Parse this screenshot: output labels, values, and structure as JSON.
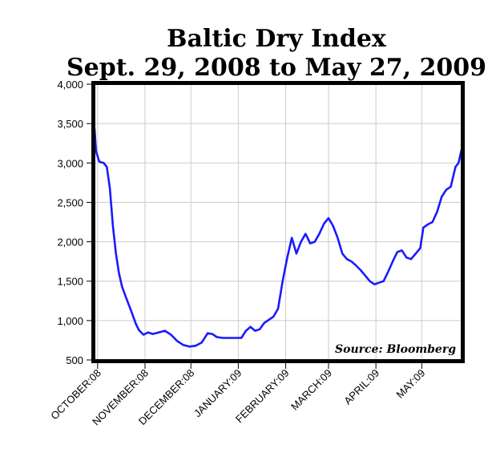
{
  "chart_data": {
    "type": "line",
    "title": "Baltic Dry Index",
    "subtitle": "Sept. 29, 2008 to May 27, 2009",
    "source": "Source: Bloomberg",
    "xlabel": "",
    "ylabel": "",
    "ylim": [
      500,
      4000
    ],
    "xlim": [
      "2008-09-29",
      "2009-05-27"
    ],
    "yticks": [
      500,
      1000,
      1500,
      2000,
      2500,
      3000,
      3500,
      4000
    ],
    "ytick_labels": [
      "500",
      "1,000",
      "1,500",
      "2,000",
      "2,500",
      "3,000",
      "3,500",
      "4,000"
    ],
    "xticks": [
      {
        "label": "OCTOBER:08",
        "date": "2008-10-01"
      },
      {
        "label": "NOVEMBER:08",
        "date": "2008-11-01"
      },
      {
        "label": "DECEMBER:08",
        "date": "2008-12-01"
      },
      {
        "label": "JANUARY:09",
        "date": "2009-01-01"
      },
      {
        "label": "FEBRUARY:09",
        "date": "2009-02-01"
      },
      {
        "label": "MARCH:09",
        "date": "2009-03-01"
      },
      {
        "label": "APRIL:09",
        "date": "2009-04-01"
      },
      {
        "label": "MAY:09",
        "date": "2009-05-01"
      }
    ],
    "grid": true,
    "line_color": "#1a1aff",
    "series": [
      {
        "x": [
          "2008-09-29",
          "2008-09-30",
          "2008-10-02",
          "2008-10-03",
          "2008-10-05",
          "2008-10-07",
          "2008-10-09",
          "2008-10-11",
          "2008-10-13",
          "2008-10-15",
          "2008-10-17",
          "2008-10-20",
          "2008-10-23",
          "2008-10-26",
          "2008-10-28",
          "2008-10-31",
          "2008-11-03",
          "2008-11-06",
          "2008-11-10",
          "2008-11-14",
          "2008-11-18",
          "2008-11-22",
          "2008-11-26",
          "2008-11-30",
          "2008-12-04",
          "2008-12-08",
          "2008-12-12",
          "2008-12-15",
          "2008-12-18",
          "2008-12-22",
          "2008-12-26",
          "2008-12-30",
          "2009-01-03",
          "2009-01-06",
          "2009-01-09",
          "2009-01-12",
          "2009-01-15",
          "2009-01-18",
          "2009-01-21",
          "2009-01-24",
          "2009-01-27",
          "2009-01-30",
          "2009-02-02",
          "2009-02-05",
          "2009-02-08",
          "2009-02-11",
          "2009-02-14",
          "2009-02-17",
          "2009-02-20",
          "2009-02-23",
          "2009-02-26",
          "2009-03-01",
          "2009-03-04",
          "2009-03-07",
          "2009-03-10",
          "2009-03-13",
          "2009-03-16",
          "2009-03-19",
          "2009-03-22",
          "2009-03-25",
          "2009-03-28",
          "2009-03-31",
          "2009-04-03",
          "2009-04-06",
          "2009-04-09",
          "2009-04-12",
          "2009-04-15",
          "2009-04-18",
          "2009-04-21",
          "2009-04-24",
          "2009-04-27",
          "2009-04-30",
          "2009-05-02",
          "2009-05-05",
          "2009-05-08",
          "2009-05-11",
          "2009-05-14",
          "2009-05-17",
          "2009-05-20",
          "2009-05-23",
          "2009-05-25",
          "2009-05-27"
        ],
        "y": [
          3430,
          3150,
          3020,
          3010,
          3000,
          2950,
          2680,
          2200,
          1850,
          1600,
          1430,
          1270,
          1120,
          960,
          880,
          820,
          850,
          830,
          850,
          870,
          820,
          740,
          690,
          670,
          680,
          720,
          840,
          830,
          790,
          780,
          780,
          780,
          780,
          870,
          920,
          870,
          890,
          970,
          1010,
          1050,
          1150,
          1500,
          1800,
          2050,
          1850,
          2000,
          2100,
          1980,
          2000,
          2100,
          2230,
          2300,
          2200,
          2050,
          1850,
          1780,
          1750,
          1700,
          1640,
          1570,
          1500,
          1460,
          1480,
          1500,
          1620,
          1750,
          1870,
          1890,
          1800,
          1780,
          1850,
          1920,
          2180,
          2220,
          2250,
          2380,
          2570,
          2660,
          2700,
          2950,
          3000,
          3170
        ]
      }
    ]
  }
}
